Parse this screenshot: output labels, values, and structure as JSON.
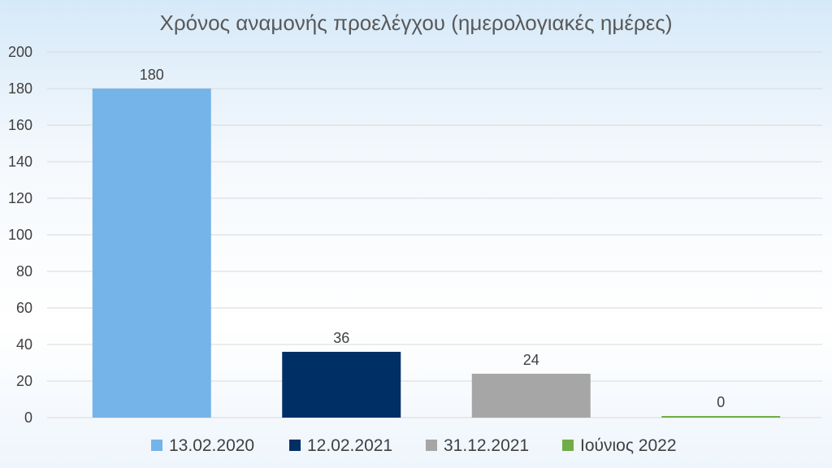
{
  "chart_data": {
    "type": "bar",
    "title": "Χρόνος αναμονής προελέγχου (ημερολογιακές ημέρες)",
    "xlabel": "",
    "ylabel": "",
    "ylim": [
      0,
      200
    ],
    "yticks": [
      0,
      20,
      40,
      60,
      80,
      100,
      120,
      140,
      160,
      180,
      200
    ],
    "grid": true,
    "legend_position": "bottom",
    "categories": [
      "13.02.2020",
      "12.02.2021",
      "31.12.2021",
      "Ιούνιος 2022"
    ],
    "values": [
      180,
      36,
      24,
      0
    ],
    "data_labels": [
      "180",
      "36",
      "24",
      "0"
    ],
    "colors": [
      "#74b4e8",
      "#002f66",
      "#a6a6a6",
      "#70ad47"
    ]
  }
}
